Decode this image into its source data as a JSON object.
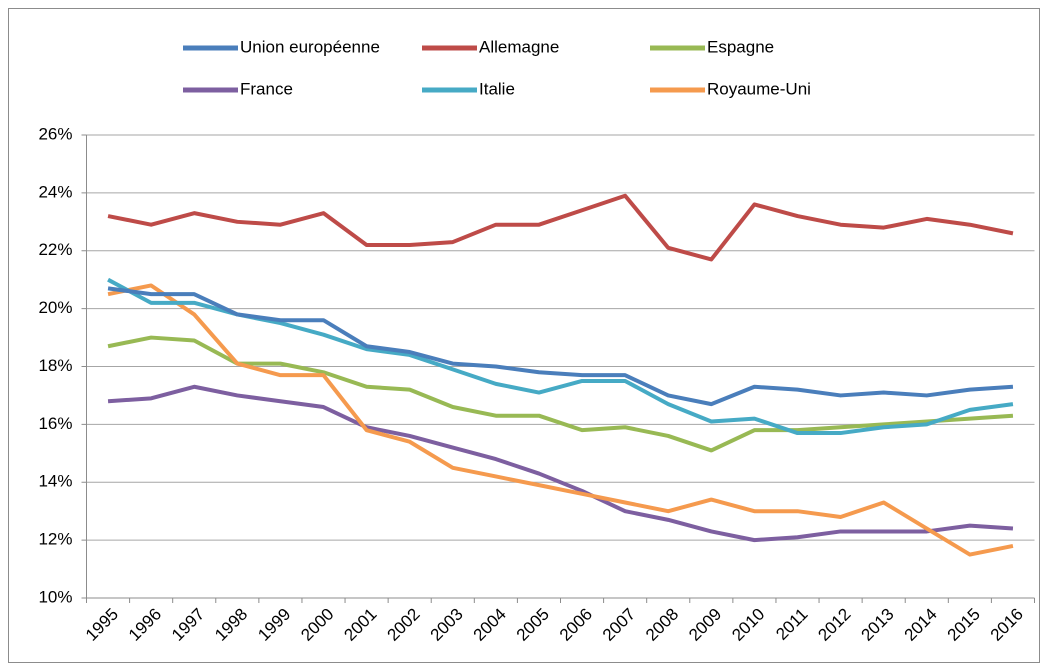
{
  "chart_data": {
    "type": "line",
    "categories": [
      "1995",
      "1996",
      "1997",
      "1998",
      "1999",
      "2000",
      "2001",
      "2002",
      "2003",
      "2004",
      "2005",
      "2006",
      "2007",
      "2008",
      "2009",
      "2010",
      "2011",
      "2012",
      "2013",
      "2014",
      "2015",
      "2016"
    ],
    "series": [
      {
        "name": "Union européenne",
        "color": "#4a7ebb",
        "values": [
          20.7,
          20.5,
          20.5,
          19.8,
          19.6,
          19.6,
          18.7,
          18.5,
          18.1,
          18.0,
          17.8,
          17.7,
          17.7,
          17.0,
          16.7,
          17.3,
          17.2,
          17.0,
          17.1,
          17.0,
          17.2,
          17.3
        ]
      },
      {
        "name": "Allemagne",
        "color": "#be4b48",
        "values": [
          23.2,
          22.9,
          23.3,
          23.0,
          22.9,
          23.3,
          22.2,
          22.2,
          22.3,
          22.9,
          22.9,
          23.4,
          23.9,
          22.1,
          21.7,
          23.6,
          23.2,
          22.9,
          22.8,
          23.1,
          22.9,
          22.6
        ]
      },
      {
        "name": "Espagne",
        "color": "#98b954",
        "values": [
          18.7,
          19.0,
          18.9,
          18.1,
          18.1,
          17.8,
          17.3,
          17.2,
          16.6,
          16.3,
          16.3,
          15.8,
          15.9,
          15.6,
          15.1,
          15.8,
          15.8,
          15.9,
          16.0,
          16.1,
          16.2,
          16.3
        ]
      },
      {
        "name": "France",
        "color": "#7d5fa0",
        "values": [
          16.8,
          16.9,
          17.3,
          17.0,
          16.8,
          16.6,
          15.9,
          15.6,
          15.2,
          14.8,
          14.3,
          13.7,
          13.0,
          12.7,
          12.3,
          12.0,
          12.1,
          12.3,
          12.3,
          12.3,
          12.5,
          12.4
        ]
      },
      {
        "name": "Italie",
        "color": "#46aac5",
        "values": [
          21.0,
          20.2,
          20.2,
          19.8,
          19.5,
          19.1,
          18.6,
          18.4,
          17.9,
          17.4,
          17.1,
          17.5,
          17.5,
          16.7,
          16.1,
          16.2,
          15.7,
          15.7,
          15.9,
          16.0,
          16.5,
          16.7
        ]
      },
      {
        "name": "Royaume-Uni",
        "color": "#f59a4e",
        "values": [
          20.5,
          20.8,
          19.8,
          18.1,
          17.7,
          17.7,
          15.8,
          15.4,
          14.5,
          14.2,
          13.9,
          13.6,
          13.3,
          13.0,
          13.4,
          13.0,
          13.0,
          12.8,
          13.3,
          12.4,
          11.5,
          11.8
        ]
      }
    ],
    "ylim": [
      10,
      26
    ],
    "yticks": [
      {
        "value": 10,
        "label": "10%"
      },
      {
        "value": 12,
        "label": "12%"
      },
      {
        "value": 14,
        "label": "14%"
      },
      {
        "value": 16,
        "label": "16%"
      },
      {
        "value": 18,
        "label": "18%"
      },
      {
        "value": 20,
        "label": "20%"
      },
      {
        "value": 22,
        "label": "22%"
      },
      {
        "value": 24,
        "label": "24%"
      },
      {
        "value": 26,
        "label": "26%"
      }
    ],
    "grid": true,
    "legend": "top"
  }
}
